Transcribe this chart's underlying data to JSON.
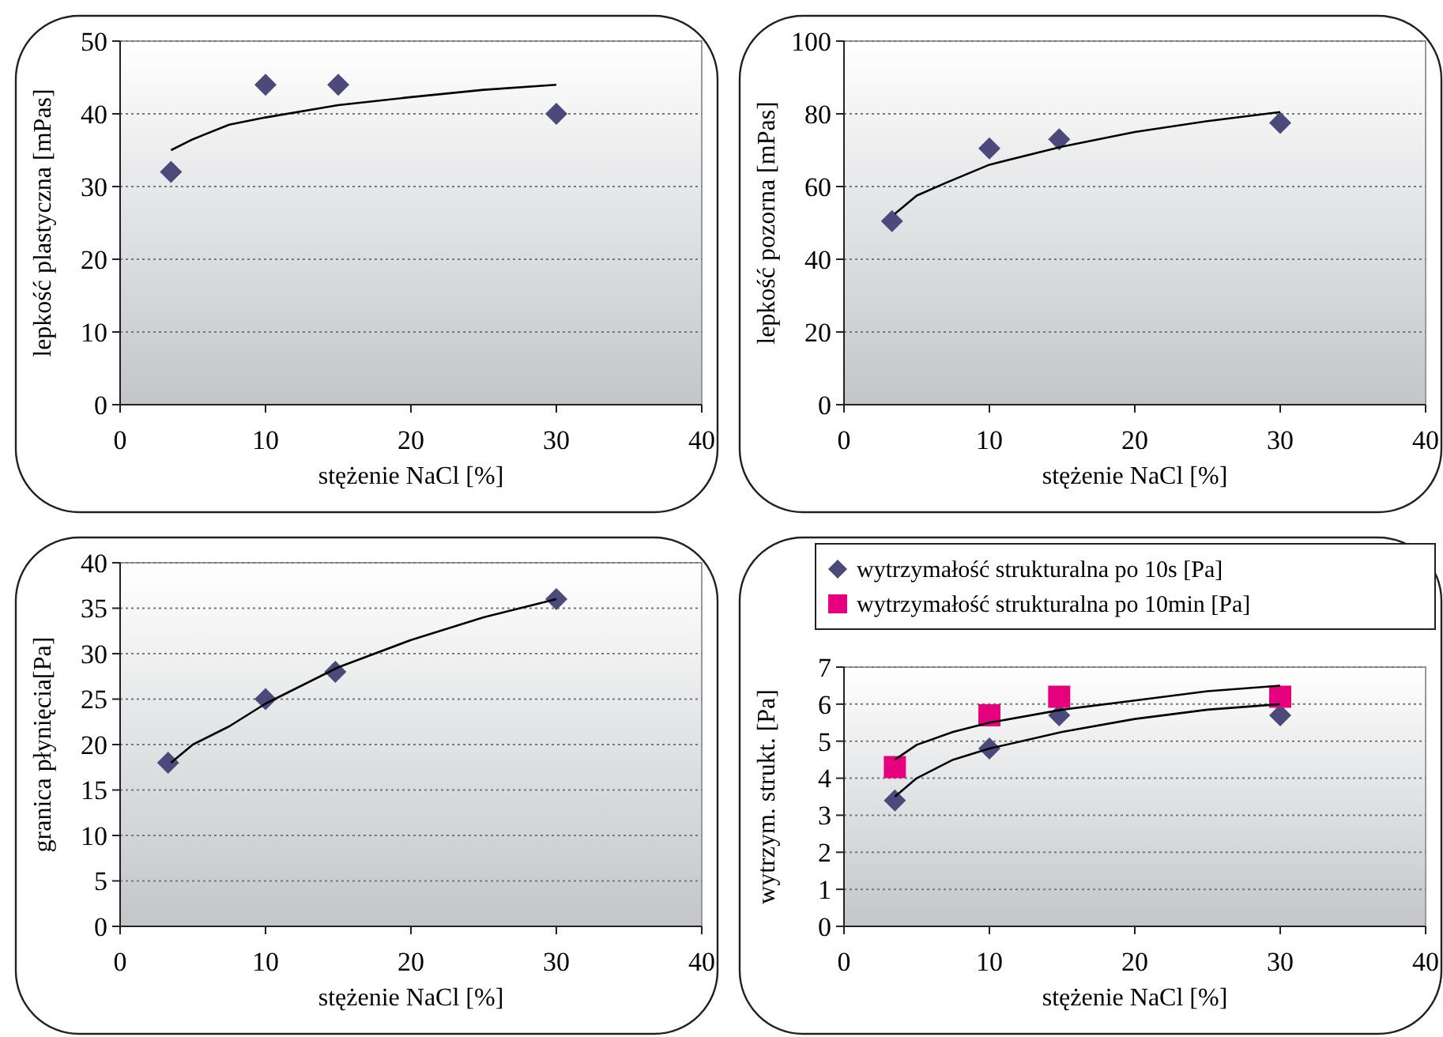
{
  "chart_data": [
    {
      "type": "scatter",
      "xlabel": "stężenie NaCl [%]",
      "ylabel": "lepkość plastyczna [mPas]",
      "xlim": [
        0,
        40
      ],
      "xticks": [
        0,
        10,
        20,
        30,
        40
      ],
      "ylim": [
        0,
        50
      ],
      "yticks": [
        0,
        10,
        20,
        30,
        40,
        50
      ],
      "grid": "y",
      "legend": false,
      "series": [
        {
          "color": "#4b4a7a",
          "marker": "diamond",
          "x": [
            3.5,
            10,
            15,
            30
          ],
          "values": [
            32,
            44,
            44,
            40
          ]
        },
        {
          "type": "line",
          "color": "#000000",
          "marker": "none",
          "x": [
            3.5,
            5,
            7.5,
            10,
            15,
            20,
            25,
            30
          ],
          "values": [
            35,
            36.5,
            38.5,
            39.5,
            41.2,
            42.3,
            43.3,
            44
          ]
        }
      ]
    },
    {
      "type": "scatter",
      "xlabel": "stężenie NaCl [%]",
      "ylabel": "lepkość pozorna [mPas]",
      "xlim": [
        0,
        40
      ],
      "xticks": [
        0,
        10,
        20,
        30,
        40
      ],
      "ylim": [
        0,
        100
      ],
      "yticks": [
        0,
        20,
        40,
        60,
        80,
        100
      ],
      "grid": "y",
      "legend": false,
      "series": [
        {
          "color": "#4b4a7a",
          "marker": "diamond",
          "x": [
            3.3,
            10,
            14.8,
            30
          ],
          "values": [
            50.5,
            70.5,
            73,
            77.5
          ]
        },
        {
          "type": "line",
          "color": "#000000",
          "marker": "none",
          "x": [
            3.5,
            5,
            7,
            10,
            15,
            20,
            25,
            30
          ],
          "values": [
            52.5,
            57.5,
            61,
            66,
            71,
            75,
            78,
            80.5
          ]
        }
      ]
    },
    {
      "type": "scatter",
      "xlabel": "stężenie NaCl [%]",
      "ylabel": "granica płynięcia[Pa]",
      "xlim": [
        0,
        40
      ],
      "xticks": [
        0,
        10,
        20,
        30,
        40
      ],
      "ylim": [
        0,
        40
      ],
      "yticks": [
        0,
        5,
        10,
        15,
        20,
        25,
        30,
        35,
        40
      ],
      "grid": "y",
      "legend": false,
      "series": [
        {
          "color": "#4b4a7a",
          "marker": "diamond",
          "x": [
            3.3,
            10,
            14.8,
            30
          ],
          "values": [
            18,
            25,
            28,
            36
          ]
        },
        {
          "type": "line",
          "color": "#000000",
          "marker": "none",
          "x": [
            3.5,
            5,
            7.5,
            10,
            15,
            20,
            25,
            30
          ],
          "values": [
            18,
            20,
            22,
            24.5,
            28.5,
            31.5,
            34,
            36
          ]
        }
      ]
    },
    {
      "type": "scatter",
      "xlabel": "stężenie NaCl [%]",
      "ylabel": "wytrzym. strukt. [Pa]",
      "xlim": [
        0,
        40
      ],
      "xticks": [
        0,
        10,
        20,
        30,
        40
      ],
      "ylim": [
        0,
        7
      ],
      "yticks": [
        0,
        1,
        2,
        3,
        4,
        5,
        6,
        7
      ],
      "grid": "y",
      "legend": "top",
      "series": [
        {
          "name": "wytrzymałość strukturalna po 10s [Pa]",
          "color": "#4b4a7a",
          "marker": "diamond",
          "x": [
            3.5,
            10,
            14.8,
            30
          ],
          "values": [
            3.4,
            4.8,
            5.7,
            5.7
          ]
        },
        {
          "name": "wytrzymałość strukturalna po 10min [Pa]",
          "color": "#e6007e",
          "marker": "square",
          "x": [
            3.5,
            10,
            14.8,
            30
          ],
          "values": [
            4.3,
            5.7,
            6.2,
            6.2
          ]
        },
        {
          "type": "line",
          "color": "#000000",
          "marker": "none",
          "x": [
            3.5,
            5,
            7.5,
            10,
            15,
            20,
            25,
            30
          ],
          "values": [
            3.5,
            4.0,
            4.5,
            4.8,
            5.25,
            5.6,
            5.85,
            6.0
          ]
        },
        {
          "type": "line",
          "color": "#000000",
          "marker": "none",
          "x": [
            3.5,
            5,
            7.5,
            10,
            15,
            20,
            25,
            30
          ],
          "values": [
            4.5,
            4.9,
            5.25,
            5.5,
            5.85,
            6.1,
            6.35,
            6.5
          ]
        }
      ]
    }
  ]
}
